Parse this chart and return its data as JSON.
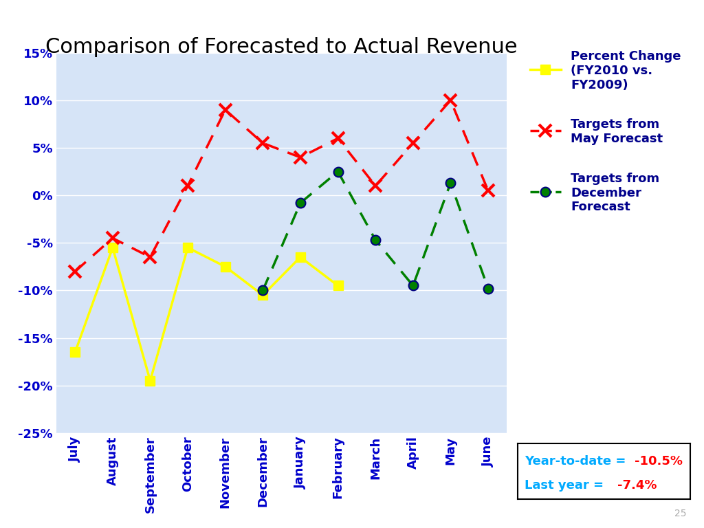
{
  "title": "Comparison of Forecasted to Actual Revenue",
  "months": [
    "July",
    "August",
    "September",
    "October",
    "November",
    "December",
    "January",
    "February",
    "March",
    "April",
    "May",
    "June"
  ],
  "yellow_data": [
    -16.5,
    -5.5,
    -19.5,
    -5.5,
    -7.5,
    -10.5,
    -6.5,
    -9.5,
    null,
    null,
    null,
    null
  ],
  "red_data": [
    -8.0,
    -4.5,
    -6.5,
    1.0,
    9.0,
    5.5,
    4.0,
    6.0,
    1.0,
    5.5,
    10.0,
    0.5
  ],
  "green_data": [
    null,
    null,
    null,
    null,
    null,
    -10.0,
    -0.8,
    2.5,
    -4.7,
    -9.5,
    1.3,
    -9.8
  ],
  "ylim": [
    -25,
    15
  ],
  "yticks": [
    -25,
    -20,
    -15,
    -10,
    -5,
    0,
    5,
    10,
    15
  ],
  "ytick_labels": [
    "-25%",
    "-20%",
    "-15%",
    "-10%",
    "-5%",
    "0%",
    "5%",
    "10%",
    "15%"
  ],
  "plot_bg_color": "#d6e4f7",
  "fig_bg_color": "#ffffff",
  "axis_label_color": "#0000cc",
  "legend1_label": "Percent Change\n(FY2010 vs.\nFY2009)",
  "legend2_label": "Targets from\nMay Forecast",
  "legend3_label": "Targets from\nDecember\nForecast",
  "yellow_color": "#ffff00",
  "red_color": "#ff0000",
  "green_color": "#008000",
  "grid_color": "#ffffff",
  "ann_label1_blue": "Year-to-date = ",
  "ann_label1_red": "-10.5%",
  "ann_label2_blue": "Last year = ",
  "ann_label2_red": "-7.4%",
  "page_num": "25"
}
